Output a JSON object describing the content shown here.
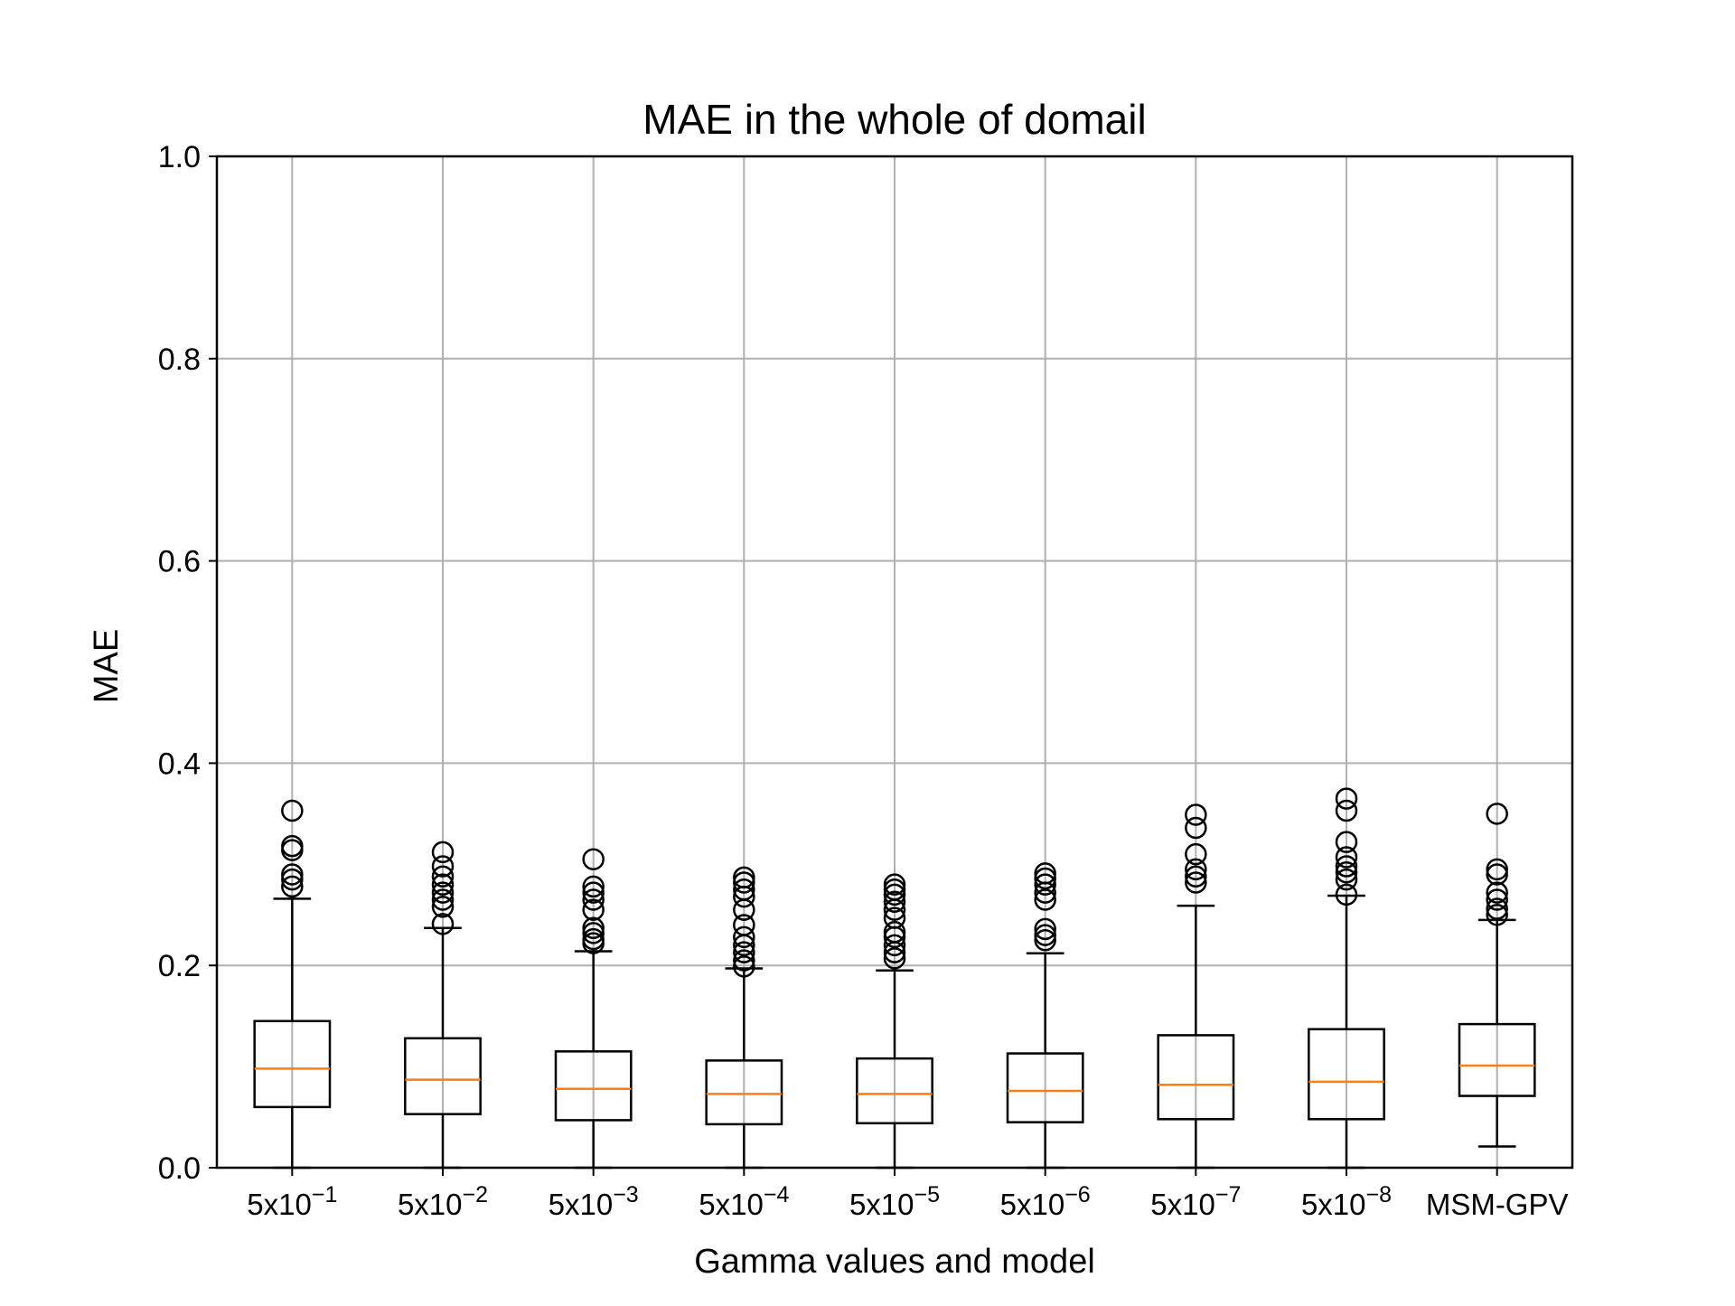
{
  "chart_data": {
    "type": "box",
    "title": "MAE in the whole of domail",
    "xlabel": "Gamma values and model",
    "ylabel": "MAE",
    "ylim": [
      0.0,
      1.0
    ],
    "yticks": [
      "0.0",
      "0.2",
      "0.4",
      "0.6",
      "0.8",
      "1.0"
    ],
    "grid": true,
    "colors": {
      "box": "#000000",
      "median": "#ff7f0e",
      "grid": "#b0b0b0"
    },
    "categories": [
      {
        "base": "5x10",
        "exp": "−1"
      },
      {
        "base": "5x10",
        "exp": "−2"
      },
      {
        "base": "5x10",
        "exp": "−3"
      },
      {
        "base": "5x10",
        "exp": "−4"
      },
      {
        "base": "5x10",
        "exp": "−5"
      },
      {
        "base": "5x10",
        "exp": "−6"
      },
      {
        "base": "5x10",
        "exp": "−7"
      },
      {
        "base": "5x10",
        "exp": "−8"
      },
      {
        "base": "MSM-GPV",
        "exp": ""
      }
    ],
    "boxes": [
      {
        "whislo": 0.0,
        "q1": 0.06,
        "med": 0.098,
        "q3": 0.145,
        "whishi": 0.266,
        "fliers": [
          0.278,
          0.285,
          0.29,
          0.314,
          0.318,
          0.353
        ]
      },
      {
        "whislo": 0.0,
        "q1": 0.053,
        "med": 0.087,
        "q3": 0.128,
        "whishi": 0.237,
        "fliers": [
          0.241,
          0.258,
          0.265,
          0.272,
          0.28,
          0.288,
          0.298,
          0.312
        ]
      },
      {
        "whislo": 0.0,
        "q1": 0.047,
        "med": 0.078,
        "q3": 0.115,
        "whishi": 0.214,
        "fliers": [
          0.222,
          0.226,
          0.232,
          0.237,
          0.255,
          0.265,
          0.272,
          0.278,
          0.305
        ]
      },
      {
        "whislo": 0.0,
        "q1": 0.043,
        "med": 0.073,
        "q3": 0.106,
        "whishi": 0.197,
        "fliers": [
          0.199,
          0.205,
          0.213,
          0.22,
          0.228,
          0.24,
          0.255,
          0.268,
          0.275,
          0.282,
          0.287
        ]
      },
      {
        "whislo": 0.0,
        "q1": 0.044,
        "med": 0.073,
        "q3": 0.108,
        "whishi": 0.195,
        "fliers": [
          0.207,
          0.213,
          0.22,
          0.228,
          0.233,
          0.247,
          0.255,
          0.263,
          0.27,
          0.275,
          0.28
        ]
      },
      {
        "whislo": 0.0,
        "q1": 0.045,
        "med": 0.076,
        "q3": 0.113,
        "whishi": 0.212,
        "fliers": [
          0.225,
          0.23,
          0.236,
          0.265,
          0.272,
          0.28,
          0.286,
          0.291
        ]
      },
      {
        "whislo": 0.0,
        "q1": 0.048,
        "med": 0.082,
        "q3": 0.131,
        "whishi": 0.259,
        "fliers": [
          0.282,
          0.288,
          0.295,
          0.31,
          0.336,
          0.349
        ]
      },
      {
        "whislo": 0.0,
        "q1": 0.048,
        "med": 0.085,
        "q3": 0.137,
        "whishi": 0.269,
        "fliers": [
          0.27,
          0.285,
          0.292,
          0.298,
          0.307,
          0.322,
          0.353,
          0.365
        ]
      },
      {
        "whislo": 0.021,
        "q1": 0.071,
        "med": 0.101,
        "q3": 0.142,
        "whishi": 0.245,
        "fliers": [
          0.25,
          0.256,
          0.265,
          0.272,
          0.29,
          0.295,
          0.35
        ]
      }
    ]
  }
}
